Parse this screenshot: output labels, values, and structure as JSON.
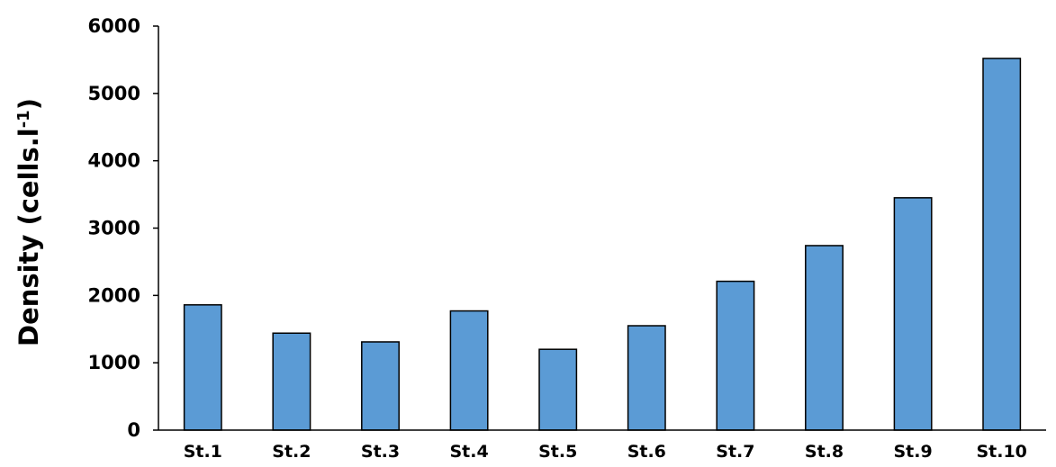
{
  "chart_data": {
    "type": "bar",
    "title": "",
    "xlabel": "",
    "ylabel": {
      "base": "Density (cells.l",
      "superscript": "-1",
      "suffix": ")"
    },
    "categories": [
      "St.1",
      "St.2",
      "St.3",
      "St.4",
      "St.5",
      "St.6",
      "St.7",
      "St.8",
      "St.9",
      "St.10"
    ],
    "values": [
      1860,
      1440,
      1310,
      1770,
      1200,
      1550,
      2210,
      2740,
      3450,
      5520
    ],
    "ylim": [
      0,
      6000
    ],
    "yticks": [
      0,
      1000,
      2000,
      3000,
      4000,
      5000,
      6000
    ],
    "grid": false,
    "legend": "none",
    "bar_color": "#5B9BD5",
    "bar_edge_color": "#000000",
    "axis_color": "#000000"
  }
}
